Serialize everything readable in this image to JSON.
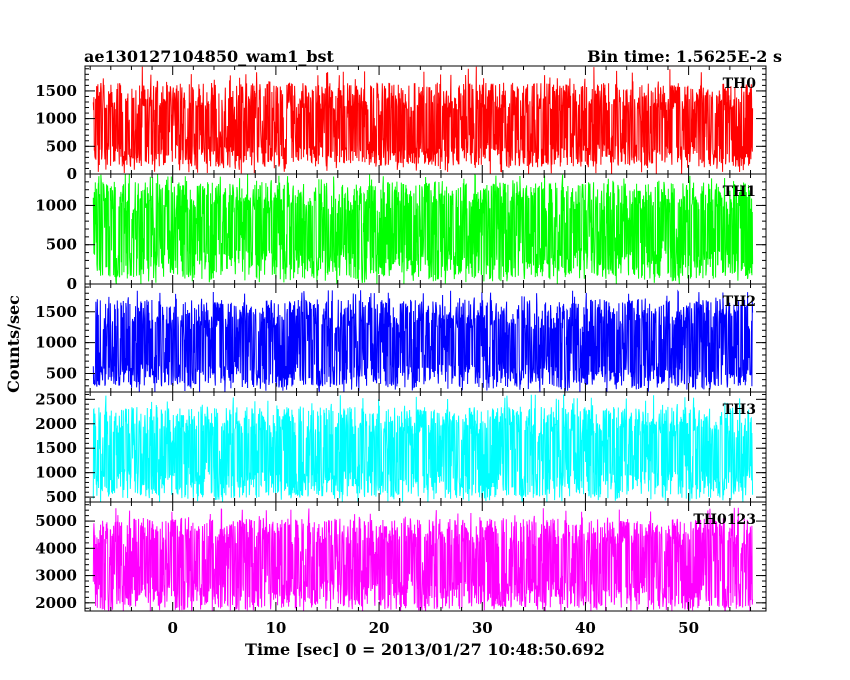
{
  "header": {
    "title": "ae130127104850_wam1_bst",
    "bin_time": "Bin time: 1.5625E-2 s"
  },
  "chart_data": {
    "type": "line",
    "xlabel": "Time [sec] 0 = 2013/01/27 10:48:50.692",
    "ylabel": "Counts/sec",
    "xlim": [
      -8.5,
      57.5
    ],
    "x_ticks": [
      0,
      10,
      20,
      30,
      40,
      50
    ],
    "x_minor_step": 2,
    "data_range": [
      -7.7,
      56.2
    ],
    "panels": [
      {
        "name": "TH0",
        "color": "#ff0000",
        "ylim": [
          0,
          1950
        ],
        "ticks": [
          0,
          500,
          1000,
          1500
        ],
        "minor_step": 100,
        "mean": 800,
        "low": 130,
        "high": 1650,
        "peak": 1950
      },
      {
        "name": "TH1",
        "color": "#00ff00",
        "ylim": [
          0,
          1400
        ],
        "ticks": [
          0,
          500,
          1000
        ],
        "minor_step": 100,
        "mean": 680,
        "low": 60,
        "high": 1300,
        "peak": 1400
      },
      {
        "name": "TH2",
        "color": "#0000ff",
        "ylim": [
          200,
          1950
        ],
        "ticks": [
          500,
          1000,
          1500
        ],
        "minor_step": 100,
        "mean": 900,
        "low": 270,
        "high": 1700,
        "peak": 1850
      },
      {
        "name": "TH3",
        "color": "#00ffff",
        "ylim": [
          400,
          2650
        ],
        "ticks": [
          500,
          1000,
          1500,
          2000,
          2500
        ],
        "minor_step": 100,
        "mean": 1400,
        "low": 470,
        "high": 2350,
        "peak": 2600
      },
      {
        "name": "TH0123",
        "color": "#ff00ff",
        "ylim": [
          1700,
          5700
        ],
        "ticks": [
          2000,
          3000,
          4000,
          5000
        ],
        "minor_step": 200,
        "mean": 3500,
        "low": 1750,
        "high": 5100,
        "peak": 5500
      }
    ]
  }
}
